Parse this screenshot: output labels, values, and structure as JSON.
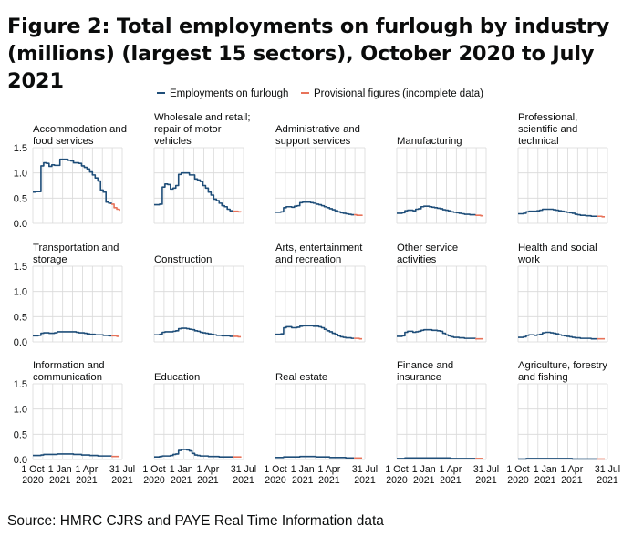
{
  "title": "Figure 2: Total employments on furlough by industry (millions) (largest 15 sectors), October 2020 to July 2021",
  "source": "Source: HMRC CJRS and PAYE Real Time Information data",
  "colors": {
    "main": "#1f4e79",
    "provisional": "#e8735a",
    "grid": "#d9d9d9",
    "text": "#0b0c0c"
  },
  "chart_data": {
    "type": "line",
    "layout": "small-multiples-5x3",
    "legend": [
      {
        "label": "Employments on furlough",
        "color": "#1f4e79"
      },
      {
        "label": "Provisional figures (incomplete data)",
        "color": "#e8735a"
      }
    ],
    "legend_placement": "top-center",
    "grid": true,
    "ylim": [
      0,
      1.5
    ],
    "yticks": [
      "0.0",
      "0.5",
      "1.0",
      "1.5"
    ],
    "ytick_values": [
      0,
      0.5,
      1.0,
      1.5
    ],
    "x_range": [
      "2020-10-01",
      "2021-07-31"
    ],
    "xticks": [
      {
        "label": [
          "1 Oct",
          "2020"
        ],
        "date": "2020-10-01"
      },
      {
        "label": [
          "1 Jan",
          "2021"
        ],
        "date": "2021-01-01"
      },
      {
        "label": [
          "1 Apr",
          "2021"
        ],
        "date": "2021-04-01"
      },
      {
        "label": [
          "31 Jul",
          "2021"
        ],
        "date": "2021-07-31"
      }
    ],
    "panels": [
      {
        "title": "Accommodation and food services",
        "values": [
          0.62,
          0.63,
          0.63,
          1.14,
          1.2,
          1.19,
          1.13,
          1.16,
          1.15,
          1.15,
          1.27,
          1.27,
          1.27,
          1.25,
          1.24,
          1.2,
          1.2,
          1.19,
          1.14,
          1.11,
          1.08,
          1.02,
          0.96,
          0.9,
          0.84,
          0.66,
          0.62,
          0.42,
          0.4,
          0.38
        ],
        "provisional": [
          0.38,
          0.31,
          0.28,
          0.25
        ]
      },
      {
        "title": "Wholesale and retail; repair of motor vehicles",
        "values": [
          0.37,
          0.37,
          0.38,
          0.72,
          0.78,
          0.77,
          0.68,
          0.7,
          0.75,
          0.97,
          1.0,
          1.0,
          1.0,
          0.96,
          0.96,
          0.88,
          0.86,
          0.83,
          0.75,
          0.7,
          0.62,
          0.56,
          0.48,
          0.45,
          0.4,
          0.35,
          0.33,
          0.28,
          0.25,
          0.24
        ],
        "provisional": [
          0.24,
          0.24,
          0.23,
          0.22
        ]
      },
      {
        "title": "Administrative and support services",
        "values": [
          0.22,
          0.22,
          0.23,
          0.31,
          0.33,
          0.33,
          0.32,
          0.34,
          0.35,
          0.41,
          0.42,
          0.42,
          0.42,
          0.41,
          0.4,
          0.38,
          0.37,
          0.35,
          0.33,
          0.31,
          0.29,
          0.27,
          0.25,
          0.23,
          0.21,
          0.2,
          0.19,
          0.18,
          0.17,
          0.17
        ],
        "provisional": [
          0.17,
          0.16,
          0.16,
          0.15
        ]
      },
      {
        "title": "Manufacturing",
        "values": [
          0.2,
          0.2,
          0.21,
          0.25,
          0.26,
          0.26,
          0.25,
          0.28,
          0.29,
          0.33,
          0.34,
          0.34,
          0.33,
          0.32,
          0.31,
          0.3,
          0.29,
          0.27,
          0.26,
          0.25,
          0.23,
          0.22,
          0.21,
          0.2,
          0.19,
          0.18,
          0.18,
          0.17,
          0.17,
          0.16
        ],
        "provisional": [
          0.16,
          0.16,
          0.15,
          0.15
        ]
      },
      {
        "title": "Professional, scientific and technical",
        "values": [
          0.19,
          0.19,
          0.2,
          0.23,
          0.24,
          0.24,
          0.24,
          0.25,
          0.26,
          0.28,
          0.28,
          0.28,
          0.28,
          0.27,
          0.26,
          0.25,
          0.24,
          0.23,
          0.22,
          0.21,
          0.2,
          0.18,
          0.17,
          0.16,
          0.16,
          0.15,
          0.15,
          0.14,
          0.14,
          0.14
        ],
        "provisional": [
          0.14,
          0.14,
          0.13,
          0.13
        ]
      },
      {
        "title": "Transportation and storage",
        "values": [
          0.12,
          0.12,
          0.13,
          0.17,
          0.18,
          0.18,
          0.17,
          0.17,
          0.18,
          0.2,
          0.2,
          0.2,
          0.2,
          0.2,
          0.2,
          0.2,
          0.19,
          0.18,
          0.18,
          0.17,
          0.16,
          0.15,
          0.15,
          0.14,
          0.14,
          0.14,
          0.13,
          0.13,
          0.12,
          0.12
        ],
        "provisional": [
          0.12,
          0.12,
          0.11,
          0.11
        ]
      },
      {
        "title": "Construction",
        "values": [
          0.14,
          0.14,
          0.15,
          0.19,
          0.2,
          0.2,
          0.2,
          0.21,
          0.22,
          0.26,
          0.27,
          0.27,
          0.26,
          0.25,
          0.24,
          0.22,
          0.21,
          0.19,
          0.18,
          0.17,
          0.16,
          0.15,
          0.14,
          0.13,
          0.13,
          0.12,
          0.12,
          0.12,
          0.11,
          0.11
        ],
        "provisional": [
          0.11,
          0.11,
          0.1,
          0.1
        ]
      },
      {
        "title": "Arts, entertainment and recreation",
        "values": [
          0.15,
          0.15,
          0.16,
          0.28,
          0.3,
          0.3,
          0.28,
          0.28,
          0.29,
          0.31,
          0.32,
          0.32,
          0.32,
          0.32,
          0.31,
          0.31,
          0.3,
          0.28,
          0.25,
          0.22,
          0.2,
          0.17,
          0.15,
          0.12,
          0.1,
          0.09,
          0.08,
          0.08,
          0.07,
          0.07
        ],
        "provisional": [
          0.07,
          0.07,
          0.06,
          0.06
        ]
      },
      {
        "title": "Other service activities",
        "values": [
          0.11,
          0.11,
          0.12,
          0.19,
          0.21,
          0.21,
          0.19,
          0.2,
          0.21,
          0.23,
          0.24,
          0.24,
          0.24,
          0.23,
          0.23,
          0.22,
          0.21,
          0.17,
          0.14,
          0.12,
          0.1,
          0.09,
          0.09,
          0.08,
          0.08,
          0.07,
          0.07,
          0.07,
          0.07,
          0.06
        ],
        "provisional": [
          0.06,
          0.06,
          0.06,
          0.06
        ]
      },
      {
        "title": "Health and social work",
        "values": [
          0.09,
          0.09,
          0.1,
          0.13,
          0.14,
          0.14,
          0.13,
          0.14,
          0.15,
          0.18,
          0.19,
          0.19,
          0.18,
          0.17,
          0.16,
          0.14,
          0.13,
          0.12,
          0.11,
          0.1,
          0.09,
          0.08,
          0.08,
          0.07,
          0.07,
          0.07,
          0.07,
          0.06,
          0.06,
          0.06
        ],
        "provisional": [
          0.06,
          0.06,
          0.06,
          0.06
        ]
      },
      {
        "title": "Information and communication",
        "values": [
          0.08,
          0.08,
          0.08,
          0.09,
          0.1,
          0.1,
          0.1,
          0.1,
          0.1,
          0.11,
          0.11,
          0.11,
          0.11,
          0.11,
          0.11,
          0.1,
          0.1,
          0.1,
          0.09,
          0.09,
          0.09,
          0.08,
          0.08,
          0.08,
          0.07,
          0.07,
          0.07,
          0.07,
          0.07,
          0.06
        ],
        "provisional": [
          0.06,
          0.06,
          0.06,
          0.06
        ]
      },
      {
        "title": "Education",
        "values": [
          0.05,
          0.05,
          0.06,
          0.07,
          0.07,
          0.07,
          0.08,
          0.1,
          0.11,
          0.18,
          0.2,
          0.2,
          0.19,
          0.17,
          0.12,
          0.09,
          0.08,
          0.07,
          0.07,
          0.07,
          0.06,
          0.06,
          0.06,
          0.06,
          0.05,
          0.05,
          0.05,
          0.05,
          0.05,
          0.05
        ],
        "provisional": [
          0.05,
          0.05,
          0.05,
          0.04
        ]
      },
      {
        "title": "Real estate",
        "values": [
          0.04,
          0.04,
          0.04,
          0.05,
          0.05,
          0.05,
          0.05,
          0.05,
          0.05,
          0.06,
          0.06,
          0.06,
          0.06,
          0.06,
          0.06,
          0.05,
          0.05,
          0.05,
          0.05,
          0.05,
          0.04,
          0.04,
          0.04,
          0.04,
          0.04,
          0.04,
          0.03,
          0.03,
          0.03,
          0.03
        ],
        "provisional": [
          0.03,
          0.03,
          0.03,
          0.03
        ]
      },
      {
        "title": "Finance and insurance",
        "values": [
          0.02,
          0.02,
          0.02,
          0.03,
          0.03,
          0.03,
          0.03,
          0.03,
          0.03,
          0.03,
          0.03,
          0.03,
          0.03,
          0.03,
          0.03,
          0.03,
          0.03,
          0.03,
          0.03,
          0.03,
          0.02,
          0.02,
          0.02,
          0.02,
          0.02,
          0.02,
          0.02,
          0.02,
          0.02,
          0.02
        ],
        "provisional": [
          0.02,
          0.02,
          0.02,
          0.02
        ]
      },
      {
        "title": "Agriculture, forestry and fishing",
        "values": [
          0.01,
          0.01,
          0.01,
          0.02,
          0.02,
          0.02,
          0.02,
          0.02,
          0.02,
          0.02,
          0.02,
          0.02,
          0.02,
          0.02,
          0.02,
          0.02,
          0.02,
          0.02,
          0.02,
          0.02,
          0.01,
          0.01,
          0.01,
          0.01,
          0.01,
          0.01,
          0.01,
          0.01,
          0.01,
          0.01
        ],
        "provisional": [
          0.01,
          0.01,
          0.01,
          0.01
        ]
      }
    ]
  }
}
